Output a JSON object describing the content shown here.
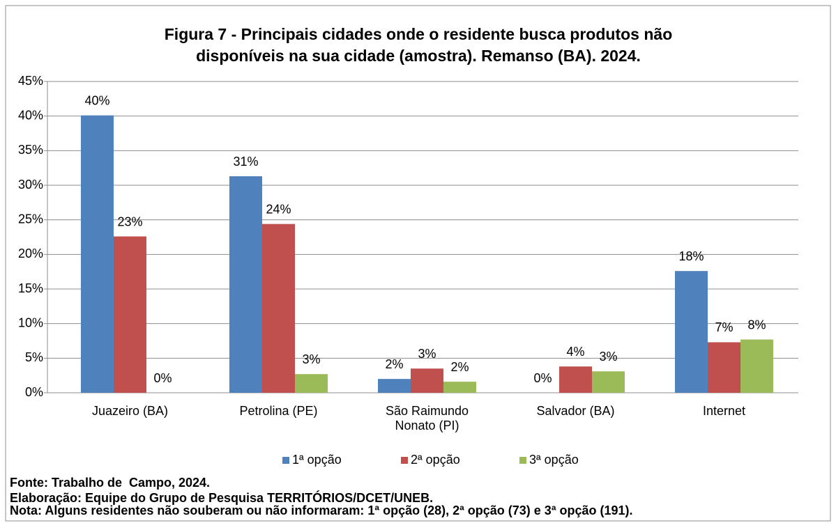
{
  "chart_data": {
    "type": "bar",
    "title": "Figura 7 - Principais cidades onde o residente busca produtos não disponíveis na sua cidade (amostra). Remanso (BA). 2024.",
    "categories": [
      "Juazeiro (BA)",
      "Petrolina (PE)",
      "São Raimundo Nonato (PI)",
      "Salvador (BA)",
      "Internet"
    ],
    "series": [
      {
        "name": "1ª opção",
        "color": "#4f81bd",
        "values": [
          40.1,
          31.3,
          2.0,
          0,
          17.6
        ],
        "value_labels": [
          "40%",
          "31%",
          "2%",
          "0%",
          "18%"
        ]
      },
      {
        "name": "2ª opção",
        "color": "#c0504d",
        "values": [
          22.6,
          24.4,
          3.5,
          3.8,
          7.3
        ],
        "value_labels": [
          "23%",
          "24%",
          "3%",
          "4%",
          "7%"
        ]
      },
      {
        "name": "3ª opção",
        "color": "#9bbb59",
        "values": [
          0,
          2.7,
          1.6,
          3.1,
          7.7
        ],
        "value_labels": [
          "0%",
          "3%",
          "2%",
          "3%",
          "8%"
        ]
      }
    ],
    "ylim": [
      0,
      45
    ],
    "yticks": [
      {
        "value": 0,
        "label": "0%"
      },
      {
        "value": 5,
        "label": "5%"
      },
      {
        "value": 10,
        "label": "10%"
      },
      {
        "value": 15,
        "label": "15%"
      },
      {
        "value": 20,
        "label": "20%"
      },
      {
        "value": 25,
        "label": "25%"
      },
      {
        "value": 30,
        "label": "30%"
      },
      {
        "value": 35,
        "label": "35%"
      },
      {
        "value": 40,
        "label": "40%"
      },
      {
        "value": 45,
        "label": "45%"
      }
    ],
    "grid": true,
    "legend": "bottom",
    "source": "Fonte: Trabalho de  Campo, 2024.",
    "credit": "Elaboração: Equipe do Grupo de Pesquisa TERRITÓRIOS/DCET/UNEB.",
    "note": "Nota: Alguns residentes não souberam ou não informaram: 1ª opção (28), 2ª opção (73) e 3ª opção (191)."
  }
}
